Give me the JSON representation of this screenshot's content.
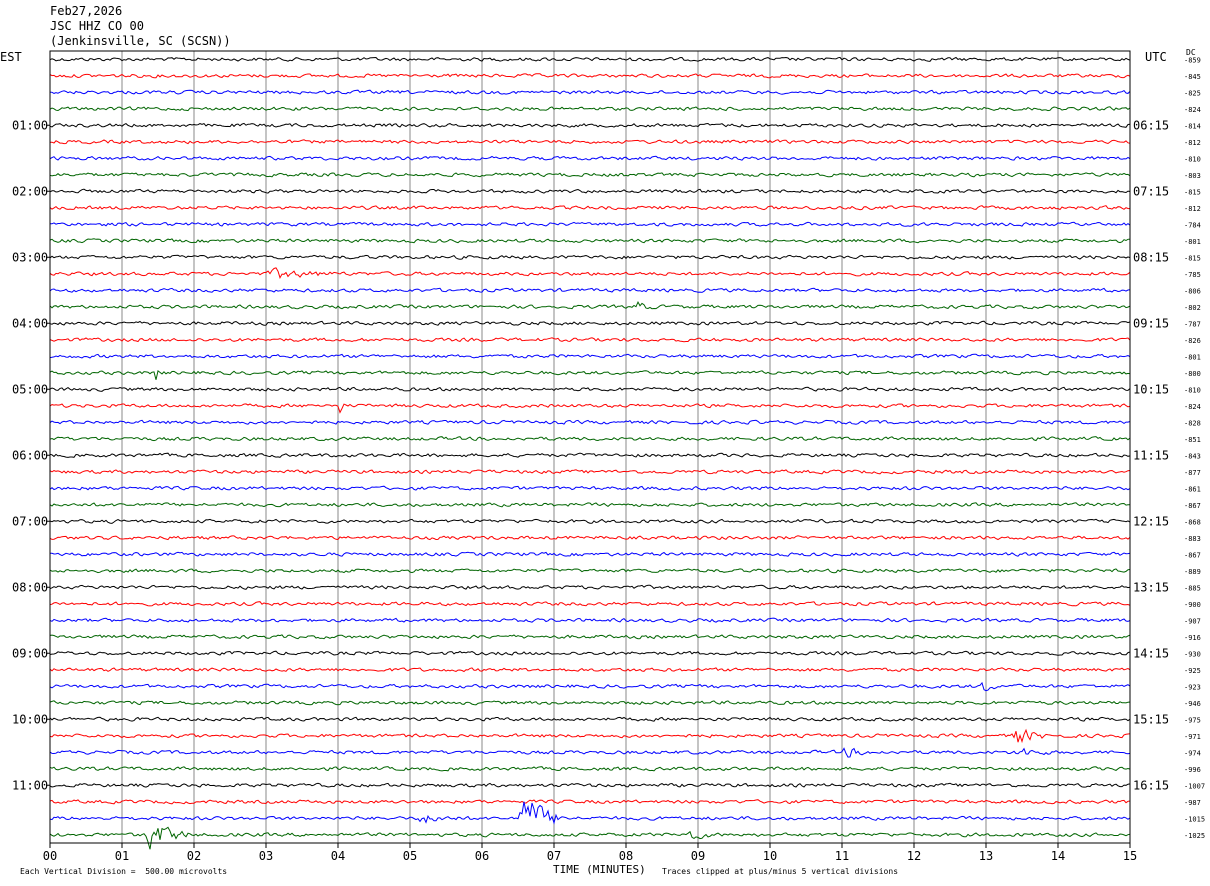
{
  "header": {
    "date": "Feb27,2026",
    "station": "JSC HHZ CO 00",
    "location": "(Jenkinsville, SC (SCSN))"
  },
  "left_axis_label": "EST",
  "right_axis_label": "UTC",
  "dc_label": "DC",
  "footer": {
    "scale": "Each Vertical Division =  500.00 microvolts",
    "clip": "Traces clipped at plus/minus 5 vertical divisions"
  },
  "colors": {
    "trace_cycle": [
      "#000000",
      "#ff0000",
      "#0000ff",
      "#006400"
    ],
    "grid": "#888888",
    "frame": "#000000"
  },
  "chart_data": {
    "type": "line",
    "subtype": "helicorder",
    "xlabel": "TIME (MINUTES)",
    "x_ticks": [
      "00",
      "01",
      "02",
      "03",
      "04",
      "05",
      "06",
      "07",
      "08",
      "09",
      "10",
      "11",
      "12",
      "13",
      "14",
      "15"
    ],
    "xlim": [
      0,
      15
    ],
    "rows_per_hour": 4,
    "left_time_labels": [
      "01:00",
      "02:00",
      "03:00",
      "04:00",
      "05:00",
      "06:00",
      "07:00",
      "08:00",
      "09:00",
      "10:00",
      "11:00"
    ],
    "right_time_labels": [
      "06:15",
      "07:15",
      "08:15",
      "09:15",
      "10:15",
      "11:15",
      "12:15",
      "13:15",
      "14:15",
      "15:15",
      "16:15"
    ],
    "dc_offsets": [
      -859,
      -845,
      -825,
      -824,
      -814,
      -812,
      -810,
      -803,
      -815,
      -812,
      -784,
      -801,
      -815,
      -785,
      -806,
      -802,
      -787,
      -826,
      -801,
      -800,
      -810,
      -824,
      -828,
      -851,
      -843,
      -877,
      -861,
      -867,
      -868,
      -883,
      -867,
      -889,
      -885,
      -900,
      -907,
      -916,
      -930,
      -925,
      -923,
      -946,
      -975,
      -971,
      -974,
      -996,
      -1007,
      -987,
      -1015,
      -1025
    ],
    "events": [
      {
        "row": 13,
        "start_min": 3.0,
        "end_min": 4.1,
        "amplitude": 0.45
      },
      {
        "row": 15,
        "start_min": 8.1,
        "end_min": 8.4,
        "amplitude": 0.5
      },
      {
        "row": 19,
        "start_min": 1.45,
        "end_min": 1.55,
        "amplitude": 1.2
      },
      {
        "row": 21,
        "start_min": 4.0,
        "end_min": 4.1,
        "amplitude": 1.0
      },
      {
        "row": 38,
        "start_min": 12.9,
        "end_min": 13.2,
        "amplitude": 0.6
      },
      {
        "row": 41,
        "start_min": 13.35,
        "end_min": 13.9,
        "amplitude": 0.9
      },
      {
        "row": 42,
        "start_min": 11.0,
        "end_min": 11.4,
        "amplitude": 0.5
      },
      {
        "row": 42,
        "start_min": 13.4,
        "end_min": 13.9,
        "amplitude": 0.5
      },
      {
        "row": 46,
        "start_min": 5.1,
        "end_min": 5.7,
        "amplitude": 0.5
      },
      {
        "row": 46,
        "start_min": 6.5,
        "end_min": 7.2,
        "amplitude": 2.6
      },
      {
        "row": 47,
        "start_min": 1.3,
        "end_min": 2.0,
        "amplitude": 1.6
      },
      {
        "row": 47,
        "start_min": 8.8,
        "end_min": 9.3,
        "amplitude": 0.5
      }
    ]
  }
}
